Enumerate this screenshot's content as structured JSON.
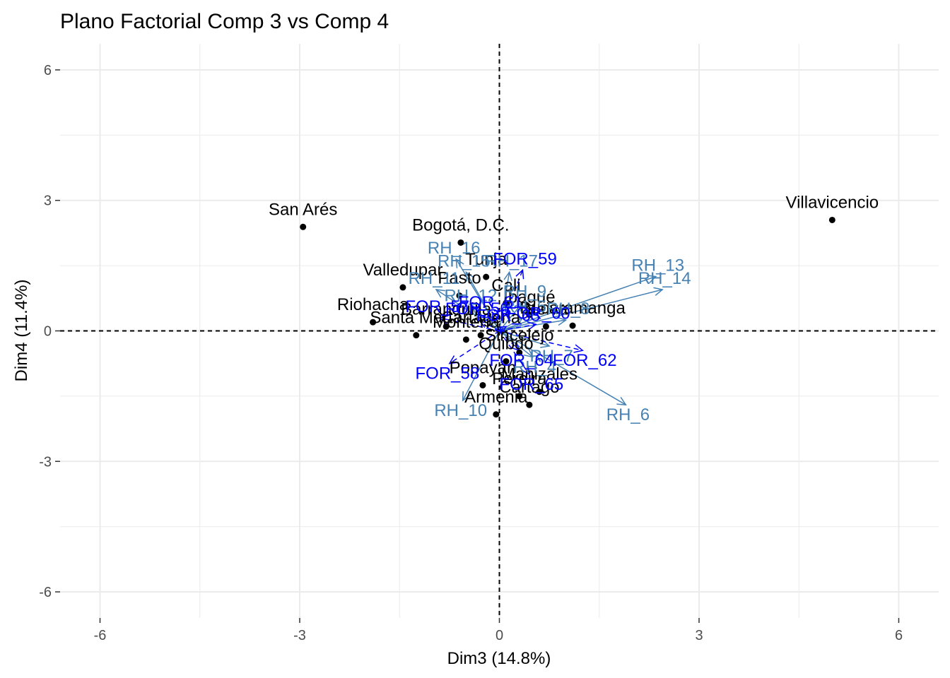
{
  "chart_data": {
    "type": "scatter",
    "title": "Plano Factorial Comp 3 vs Comp 4",
    "xlabel": "Dim3 (14.8%)",
    "ylabel": "Dim4 (11.4%)",
    "xlim": [
      -6.6,
      6.6
    ],
    "ylim": [
      -6.6,
      6.6
    ],
    "xticks": [
      -6,
      -3,
      0,
      3,
      6
    ],
    "yticks": [
      -6,
      -3,
      0,
      3,
      6
    ],
    "xtick_labels": [
      "-6",
      "-3",
      "0",
      "3",
      "6"
    ],
    "ytick_labels": [
      "-6",
      "-3",
      "0",
      "3",
      "6"
    ],
    "grid": true,
    "reference_lines": {
      "x": 0,
      "y": 0,
      "style": "dashed"
    },
    "colors": {
      "individuals": "#000000",
      "supplementary_variables": "#0000ff",
      "active_variables": "#4682b4",
      "grid": "#ebebeb"
    },
    "individuals": [
      {
        "name": "San Arés",
        "x": -2.95,
        "y": 2.39
      },
      {
        "name": "Villavicencio",
        "x": 5.0,
        "y": 2.55
      },
      {
        "name": "Bogotá, D.C.",
        "x": -0.58,
        "y": 2.03
      },
      {
        "name": "Tunja",
        "x": -0.2,
        "y": 1.24
      },
      {
        "name": "Valledupar",
        "x": -1.45,
        "y": 1.0
      },
      {
        "name": "Pasto",
        "x": -0.6,
        "y": 0.81
      },
      {
        "name": "Cali",
        "x": 0.1,
        "y": 0.64
      },
      {
        "name": "Ibagué",
        "x": 0.45,
        "y": 0.37
      },
      {
        "name": "Bucaramanga",
        "x": 1.1,
        "y": 0.12
      },
      {
        "name": "Riohacha",
        "x": -1.9,
        "y": 0.2
      },
      {
        "name": "Santa Marta",
        "x": -1.25,
        "y": -0.1
      },
      {
        "name": "Barranquilla",
        "x": -0.8,
        "y": 0.1
      },
      {
        "name": "Montería",
        "x": -0.5,
        "y": -0.2
      },
      {
        "name": "Cartagena",
        "x": -0.28,
        "y": -0.1
      },
      {
        "name": "Neiva",
        "x": 0.7,
        "y": 0.1
      },
      {
        "name": "Sincelejo",
        "x": 0.3,
        "y": -0.5
      },
      {
        "name": "Quibdó",
        "x": 0.1,
        "y": -0.7
      },
      {
        "name": "Popayán",
        "x": -0.25,
        "y": -1.25
      },
      {
        "name": "Manizales",
        "x": 0.6,
        "y": -1.4
      },
      {
        "name": "Cartago",
        "x": 0.45,
        "y": -1.7
      },
      {
        "name": "Armenia",
        "x": -0.05,
        "y": -1.92
      },
      {
        "name": "Pereira",
        "x": 0.3,
        "y": -1.5
      }
    ],
    "supplementary_variables": [
      {
        "name": "FOR_59",
        "x": 0.35,
        "y": 1.4
      },
      {
        "name": "FOR_61",
        "x": -0.1,
        "y": 0.4
      },
      {
        "name": "FOR_60",
        "x": 0.55,
        "y": 0.15
      },
      {
        "name": "FOR_62",
        "x": 1.25,
        "y": -0.45
      },
      {
        "name": "FOR_58",
        "x": -0.75,
        "y": -0.75
      },
      {
        "name": "FOR_65",
        "x": 0.45,
        "y": -1.0
      },
      {
        "name": "FOR_64",
        "x": 0.3,
        "y": -0.45
      },
      {
        "name": "FOR_63",
        "x": 0.1,
        "y": 0.1
      },
      {
        "name": "FOR_57",
        "x": -0.9,
        "y": 0.3
      },
      {
        "name": "FOR_56",
        "x": -0.3,
        "y": 0.25
      }
    ],
    "active_variables": [
      {
        "name": "RH_16",
        "x": -0.65,
        "y": 1.65
      },
      {
        "name": "RH_17",
        "x": 0.15,
        "y": 1.35
      },
      {
        "name": "RH_13",
        "x": 2.35,
        "y": 1.25
      },
      {
        "name": "RH_14",
        "x": 2.45,
        "y": 0.95
      },
      {
        "name": "RH_9",
        "x": 0.35,
        "y": 0.65
      },
      {
        "name": "RH_8",
        "x": 1.0,
        "y": 0.25
      },
      {
        "name": "RH_6",
        "x": 1.9,
        "y": -1.7
      },
      {
        "name": "RH_10",
        "x": -0.55,
        "y": -1.6
      },
      {
        "name": "RH_12",
        "x": -0.4,
        "y": 0.55
      },
      {
        "name": "RH_11",
        "x": -0.95,
        "y": 0.95
      },
      {
        "name": "RH_15",
        "x": -0.5,
        "y": 1.35
      },
      {
        "name": "RH_7",
        "x": 0.75,
        "y": -0.35
      },
      {
        "name": "RH_5",
        "x": 0.35,
        "y": 0.3
      },
      {
        "name": "RH_4",
        "x": 0.5,
        "y": -0.6
      }
    ]
  }
}
